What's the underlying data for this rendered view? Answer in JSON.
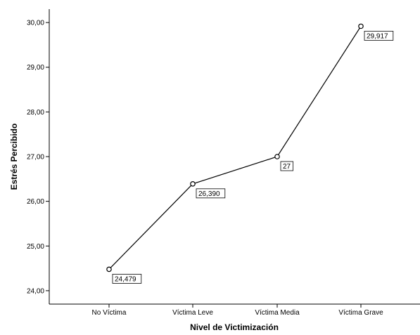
{
  "chart_data": {
    "type": "line",
    "title": "",
    "xlabel": "Nivel de Victimización",
    "ylabel": "Estrés Percibido",
    "categories": [
      "No Víctima",
      "Víctima Leve",
      "Víctima Media",
      "Víctima Grave"
    ],
    "series": [
      {
        "values": [
          24.479,
          26.39,
          27.0,
          29.917
        ],
        "data_labels": [
          "24,479",
          "26,390",
          "27",
          "29,917"
        ]
      }
    ],
    "ylim": [
      23.7,
      30.3
    ],
    "y_ticks": [
      24,
      25,
      26,
      27,
      28,
      29,
      30
    ],
    "y_tick_labels": [
      "24,00",
      "25,00",
      "26,00",
      "27,00",
      "28,00",
      "29,00",
      "30,00"
    ],
    "grid": false,
    "legend": "none",
    "colors": {
      "line": "#000000",
      "marker_fill": "#ffffff",
      "background": "#ffffff"
    }
  }
}
